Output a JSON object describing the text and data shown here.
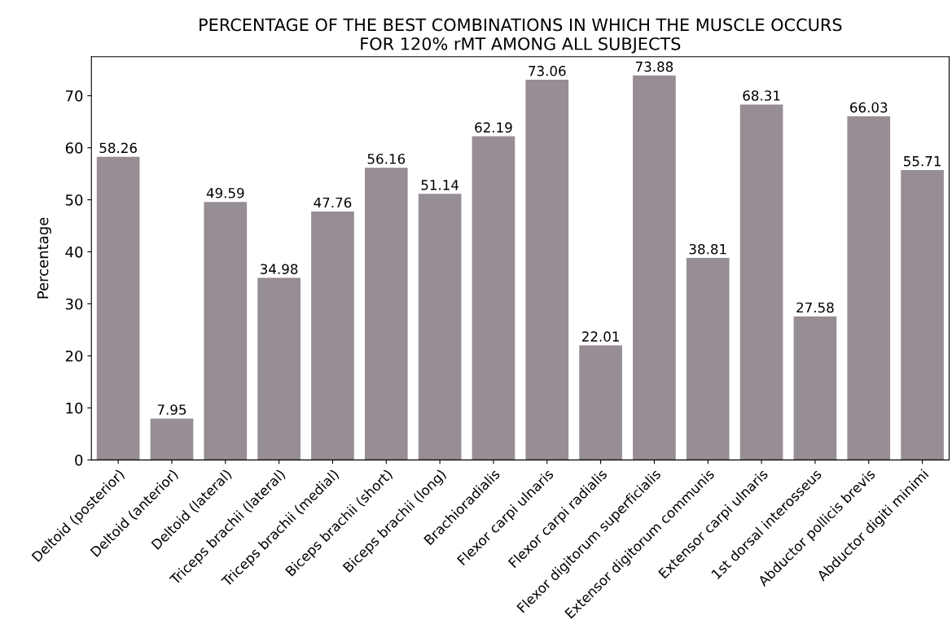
{
  "chart_data": {
    "type": "bar",
    "title": "PERCENTAGE OF THE BEST COMBINATIONS IN WHICH THE MUSCLE OCCURS\nFOR 120% rMT AMONG ALL SUBJECTS",
    "ylabel": "Percentage",
    "categories": [
      "Deltoid (posterior)",
      "Deltoid (anterior)",
      "Deltoid (lateral)",
      "Triceps brachii (lateral)",
      "Triceps brachii (medial)",
      "Biceps brachii (short)",
      "Biceps brachii (long)",
      "Brachioradialis",
      "Flexor carpi ulnaris",
      "Flexor carpi radialis",
      "Flexor digitorum superficialis",
      "Extensor digitorum communis",
      "Extensor carpi ulnaris",
      "1st dorsal interosseus",
      "Abductor pollicis brevis",
      "Abductor digiti minimi"
    ],
    "values": [
      58.26,
      7.95,
      49.59,
      34.98,
      47.76,
      56.16,
      51.14,
      62.19,
      73.06,
      22.01,
      73.88,
      38.81,
      68.31,
      27.58,
      66.03,
      55.71
    ],
    "color": "#978d95",
    "ylim": [
      0,
      77.5
    ],
    "yticks": [
      0,
      10,
      20,
      30,
      40,
      50,
      60,
      70
    ],
    "grid": false,
    "legend": false,
    "data_labels": true
  }
}
